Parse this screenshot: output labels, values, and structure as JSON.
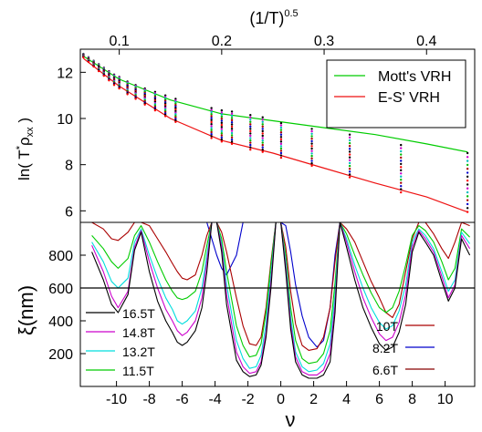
{
  "chart_data": [
    {
      "type": "scatter",
      "top_axis_label_base": "(1/T)",
      "top_axis_label_exp": "0.5",
      "ylabel_main": "ln( T",
      "ylabel_sup": "*",
      "ylabel_rho": "ρ",
      "ylabel_sub": "xx",
      "ylabel_close": " )",
      "xlim": [
        0.062,
        0.447
      ],
      "ylim": [
        5.5,
        13.0
      ],
      "xticks": [
        "0.1",
        "0.2",
        "0.3",
        "0.4"
      ],
      "xtick_values": [
        0.1,
        0.2,
        0.3,
        0.4
      ],
      "yticks": [
        "6",
        "8",
        "10",
        "12"
      ],
      "ytick_values": [
        6,
        8,
        10,
        12
      ],
      "grid": false,
      "legend_position": "top-right",
      "series": [
        {
          "name": "Mott's VRH",
          "kind": "line",
          "color": "#00cc00",
          "x": [
            0.065,
            0.1,
            0.15,
            0.2,
            0.25,
            0.3,
            0.35,
            0.4,
            0.44
          ],
          "y": [
            12.7,
            11.7,
            10.8,
            10.2,
            9.9,
            9.6,
            9.3,
            8.9,
            8.55
          ]
        },
        {
          "name": "E-S' VRH",
          "kind": "line",
          "color": "#ee1111",
          "x": [
            0.065,
            0.1,
            0.15,
            0.2,
            0.25,
            0.3,
            0.35,
            0.4,
            0.44
          ],
          "y": [
            12.6,
            11.4,
            10.0,
            9.05,
            8.5,
            7.85,
            7.2,
            6.6,
            5.95
          ]
        }
      ],
      "points": {
        "x_columns": [
          0.065,
          0.07,
          0.075,
          0.08,
          0.085,
          0.09,
          0.095,
          0.1,
          0.108,
          0.116,
          0.125,
          0.135,
          0.145,
          0.155,
          0.19,
          0.2,
          0.21,
          0.228,
          0.24,
          0.258,
          0.288,
          0.325,
          0.375,
          0.44
        ],
        "column_spread_min": [
          12.65,
          12.45,
          12.25,
          12.05,
          11.85,
          11.65,
          11.45,
          11.3,
          11.05,
          10.85,
          10.6,
          10.35,
          10.1,
          9.85,
          9.15,
          9.0,
          8.9,
          8.65,
          8.55,
          8.3,
          7.95,
          7.45,
          6.8,
          5.95
        ],
        "column_spread_max": [
          12.8,
          12.65,
          12.5,
          12.35,
          12.2,
          12.05,
          11.9,
          11.8,
          11.6,
          11.45,
          11.3,
          11.15,
          11.0,
          10.85,
          10.45,
          10.35,
          10.3,
          10.15,
          10.05,
          9.8,
          9.55,
          9.3,
          8.85,
          8.5
        ],
        "colors": [
          "#000000",
          "#cc00cc",
          "#00bbbb",
          "#00bb00",
          "#aa0000",
          "#0000cc",
          "#000000",
          "#ff0000"
        ]
      }
    },
    {
      "type": "line",
      "xlabel": "ν",
      "ylabel": "ξ(nm)",
      "xlim": [
        -12.2,
        11.8
      ],
      "ylim": [
        0,
        1000
      ],
      "xticks": [
        "-10",
        "-8",
        "-6",
        "-4",
        "-2",
        "0",
        "2",
        "4",
        "6",
        "8",
        "10"
      ],
      "xtick_values": [
        -10,
        -8,
        -6,
        -4,
        -2,
        0,
        2,
        4,
        6,
        8,
        10
      ],
      "yticks": [
        "200",
        "400",
        "600",
        "800"
      ],
      "ytick_values": [
        200,
        400,
        600,
        800
      ],
      "reference_line": 600,
      "grid": false,
      "legend_left": [
        "16.5T",
        "14.8T",
        "13.2T",
        "11.5T"
      ],
      "legend_right": [
        "10T",
        "8.2T",
        "6.6T"
      ],
      "series": [
        {
          "name": "16.5T",
          "color": "#000000",
          "x": [
            -11.5,
            -10.8,
            -10.3,
            -9.9,
            -9.3,
            -8.9,
            -8.5,
            -8,
            -7.5,
            -7,
            -6.6,
            -6.3,
            -6,
            -5.7,
            -5.2,
            -4.8,
            -4.5,
            -4.2,
            -3.9,
            -3.6,
            -3.3,
            -2.7,
            -2.3,
            -1.9,
            -1.5,
            -1.2,
            -0.9,
            -0.6,
            -0.3,
            0,
            0.3,
            0.6,
            0.9,
            1.3,
            1.7,
            2.2,
            2.6,
            3,
            3.3,
            3.6,
            4,
            4.5,
            5,
            5.5,
            6,
            6.4,
            6.8,
            7.2,
            7.6,
            8,
            8.4,
            8.8,
            9.3,
            9.8,
            10.2,
            10.6,
            11,
            11.5
          ],
          "y": [
            820,
            650,
            500,
            450,
            560,
            830,
            940,
            700,
            520,
            400,
            330,
            270,
            250,
            270,
            340,
            480,
            700,
            1000,
            1000,
            820,
            500,
            160,
            90,
            60,
            70,
            130,
            300,
            600,
            1000,
            1000,
            700,
            350,
            150,
            70,
            50,
            50,
            70,
            150,
            450,
            1000,
            850,
            650,
            480,
            360,
            260,
            220,
            240,
            330,
            500,
            820,
            940,
            880,
            800,
            640,
            520,
            600,
            900,
            800
          ]
        },
        {
          "name": "14.8T",
          "color": "#cc00cc",
          "x": [
            -11.5,
            -10.8,
            -10.3,
            -9.9,
            -9.3,
            -8.9,
            -8.5,
            -8,
            -7.5,
            -7,
            -6.6,
            -6.3,
            -6,
            -5.7,
            -5.2,
            -4.8,
            -4.5,
            -4.2,
            -3.9,
            -3.6,
            -3.3,
            -2.7,
            -2.3,
            -1.9,
            -1.5,
            -1.2,
            -0.9,
            -0.6,
            -0.3,
            0,
            0.3,
            0.6,
            0.9,
            1.3,
            1.7,
            2.2,
            2.6,
            3,
            3.3,
            3.6,
            4,
            4.5,
            5,
            5.5,
            6,
            6.4,
            6.8,
            7.2,
            7.6,
            8,
            8.4,
            8.8,
            9.3,
            9.8,
            10.2,
            10.6,
            11,
            11.5
          ],
          "y": [
            860,
            700,
            550,
            480,
            580,
            850,
            950,
            760,
            600,
            470,
            400,
            340,
            310,
            330,
            400,
            540,
            760,
            1000,
            1000,
            850,
            560,
            210,
            120,
            80,
            90,
            150,
            330,
            640,
            1000,
            1000,
            730,
            380,
            180,
            90,
            70,
            70,
            100,
            200,
            500,
            1000,
            880,
            700,
            540,
            420,
            320,
            280,
            300,
            390,
            560,
            850,
            950,
            900,
            820,
            670,
            540,
            620,
            920,
            840
          ]
        },
        {
          "name": "13.2T",
          "color": "#00dddd",
          "x": [
            -11.5,
            -10.8,
            -10.3,
            -9.9,
            -9.3,
            -8.9,
            -8.5,
            -8,
            -7.5,
            -7,
            -6.6,
            -6.3,
            -6,
            -5.7,
            -5.2,
            -4.8,
            -4.5,
            -4.2,
            -3.9,
            -3.6,
            -3.3,
            -2.7,
            -2.3,
            -1.9,
            -1.5,
            -1.2,
            -0.9,
            -0.6,
            -0.3,
            0,
            0.3,
            0.6,
            0.9,
            1.3,
            1.7,
            2.2,
            2.6,
            3,
            3.3,
            3.6,
            4,
            4.5,
            5,
            5.5,
            6,
            6.4,
            6.8,
            7.2,
            7.6,
            8,
            8.4,
            8.8,
            9.3,
            9.8,
            10.2,
            10.6,
            11,
            11.5
          ],
          "y": [
            880,
            760,
            640,
            600,
            660,
            880,
            960,
            800,
            660,
            540,
            470,
            400,
            380,
            400,
            460,
            600,
            800,
            1000,
            1000,
            870,
            620,
            280,
            170,
            110,
            120,
            190,
            380,
            680,
            1000,
            1000,
            760,
            420,
            210,
            120,
            90,
            100,
            140,
            260,
            560,
            1000,
            900,
            740,
            600,
            480,
            390,
            350,
            370,
            460,
            620,
            880,
            960,
            920,
            840,
            700,
            580,
            650,
            940,
            870
          ]
        },
        {
          "name": "11.5T",
          "color": "#00cc00",
          "x": [
            -11.5,
            -10.8,
            -10.3,
            -9.9,
            -9.3,
            -8.9,
            -8.5,
            -8,
            -7.5,
            -7,
            -6.6,
            -6.3,
            -6,
            -5.7,
            -5.2,
            -4.8,
            -4.5,
            -4.2,
            -3.9,
            -3.6,
            -3.3,
            -2.7,
            -2.3,
            -1.9,
            -1.5,
            -1.2,
            -0.9,
            -0.6,
            -0.3,
            0,
            0.3,
            0.6,
            0.9,
            1.3,
            1.7,
            2.2,
            2.6,
            3,
            3.3,
            3.6,
            4,
            4.5,
            5,
            5.5,
            6,
            6.4,
            6.8,
            7.2,
            7.6,
            8,
            8.4,
            8.8,
            9.3,
            9.8,
            10.2,
            10.6,
            11,
            11.5
          ],
          "y": [
            920,
            840,
            760,
            720,
            780,
            920,
            980,
            880,
            760,
            650,
            580,
            540,
            530,
            540,
            580,
            700,
            860,
            1000,
            1000,
            900,
            700,
            370,
            250,
            180,
            190,
            260,
            450,
            740,
            1000,
            1000,
            800,
            480,
            280,
            170,
            140,
            150,
            200,
            340,
            630,
            1000,
            930,
            800,
            680,
            570,
            480,
            450,
            480,
            580,
            740,
            920,
            980,
            950,
            880,
            760,
            650,
            720,
            960,
            910
          ]
        },
        {
          "name": "10T",
          "color": "#aa0000",
          "x": [
            -11.5,
            -10.8,
            -10.3,
            -9.9,
            -9.3,
            -8.9,
            -8.5,
            -8,
            -7.5,
            -7,
            -6.6,
            -6.3,
            -6,
            -5.7,
            -5.2,
            -4.8,
            -4.5,
            -4.2,
            -3.9,
            -3.6,
            -3.3,
            -2.7,
            -2.3,
            -1.9,
            -1.5,
            -1.2,
            -0.9,
            -0.6,
            -0.3,
            0,
            0.3,
            0.6,
            0.9,
            1.3,
            1.7,
            2.2,
            2.6,
            3,
            3.3,
            3.6,
            4,
            4.5,
            5,
            5.5,
            6,
            6.4,
            6.8,
            7.2,
            7.6,
            8,
            8.4,
            8.8,
            9.3,
            9.8,
            10.2,
            10.6,
            11,
            11.5
          ],
          "y": [
            1000,
            960,
            900,
            890,
            940,
            1000,
            1000,
            980,
            900,
            820,
            750,
            700,
            660,
            650,
            680,
            800,
            920,
            1000,
            1000,
            940,
            820,
            540,
            370,
            260,
            250,
            300,
            480,
            760,
            1000,
            1000,
            850,
            580,
            380,
            250,
            220,
            230,
            300,
            480,
            760,
            1000,
            960,
            880,
            760,
            640,
            540,
            450,
            420,
            500,
            700,
            900,
            1000,
            1000,
            930,
            840,
            780,
            880,
            1000,
            980
          ]
        },
        {
          "name": "8.2T",
          "color": "#0000cc",
          "x": [
            -11.5,
            -10.8,
            -10.3,
            -9.9,
            -9.3,
            -8.9,
            -8.5,
            -8,
            -7.5,
            -7,
            -6.6,
            -6.3,
            -6,
            -5.7,
            -5.2,
            -4.8,
            -4.5,
            -4.2,
            -3.9,
            -3.6,
            -3.3,
            -2.7,
            -2.3,
            -1.9,
            -1.5,
            -1.2,
            -0.9,
            -0.6,
            -0.3,
            0,
            0.3,
            0.6,
            0.9,
            1.3,
            1.7,
            2.2,
            2.6,
            3,
            3.3,
            3.6,
            4,
            4.5,
            5,
            5.5,
            6,
            6.4,
            6.8,
            7.2,
            7.6,
            8,
            8.4,
            8.8,
            9.3,
            9.8,
            10.2,
            10.6,
            11,
            11.5
          ],
          "y": [
            1000,
            1000,
            1000,
            1000,
            1000,
            1000,
            1000,
            1000,
            1000,
            1000,
            1000,
            1000,
            1000,
            1000,
            1000,
            1000,
            1000,
            900,
            800,
            720,
            680,
            800,
            1000,
            1000,
            1000,
            1000,
            1000,
            1000,
            1000,
            1000,
            980,
            820,
            620,
            430,
            300,
            240,
            280,
            480,
            800,
            1000,
            1000,
            1000,
            1000,
            1000,
            1000,
            1000,
            1000,
            1000,
            1000,
            1000,
            1000,
            1000,
            1000,
            1000,
            1000,
            1000,
            1000,
            1000
          ]
        },
        {
          "name": "6.6T",
          "color": "#880000",
          "x": [
            -11.5,
            -10.8,
            -10.3,
            -9.9,
            -9.3,
            -8.9,
            -8.5,
            -8,
            -7.5,
            -7,
            -6.6,
            -6.3,
            -6,
            -5.7,
            -5.2,
            -4.8,
            -4.5,
            -4.2,
            -3.9,
            -3.6,
            -3.3,
            -2.7,
            -2.3,
            -1.9,
            -1.5,
            -1.2,
            -0.9,
            -0.6,
            -0.3,
            0,
            0.3,
            0.6,
            0.9,
            1.3,
            1.7,
            2.2,
            2.6,
            3,
            3.3,
            3.6,
            4,
            4.5,
            5,
            5.5,
            6,
            6.4,
            6.8,
            7.2,
            7.6,
            8,
            8.4,
            8.8,
            9.3,
            9.8,
            10.2,
            10.6,
            11,
            11.5
          ],
          "y": [
            1000,
            1000,
            1000,
            1000,
            1000,
            1000,
            1000,
            1000,
            1000,
            1000,
            1000,
            1000,
            1000,
            1000,
            1000,
            1000,
            1000,
            1000,
            1000,
            1000,
            1000,
            1000,
            1000,
            1000,
            1000,
            1000,
            1000,
            1000,
            1000,
            1000,
            1000,
            1000,
            1000,
            1000,
            1000,
            1000,
            1000,
            1000,
            1000,
            1000,
            1000,
            1000,
            1000,
            1000,
            1000,
            1000,
            1000,
            1000,
            1000,
            1000,
            1000,
            1000,
            1000,
            1000,
            1000,
            1000,
            1000,
            1000
          ]
        }
      ]
    }
  ]
}
